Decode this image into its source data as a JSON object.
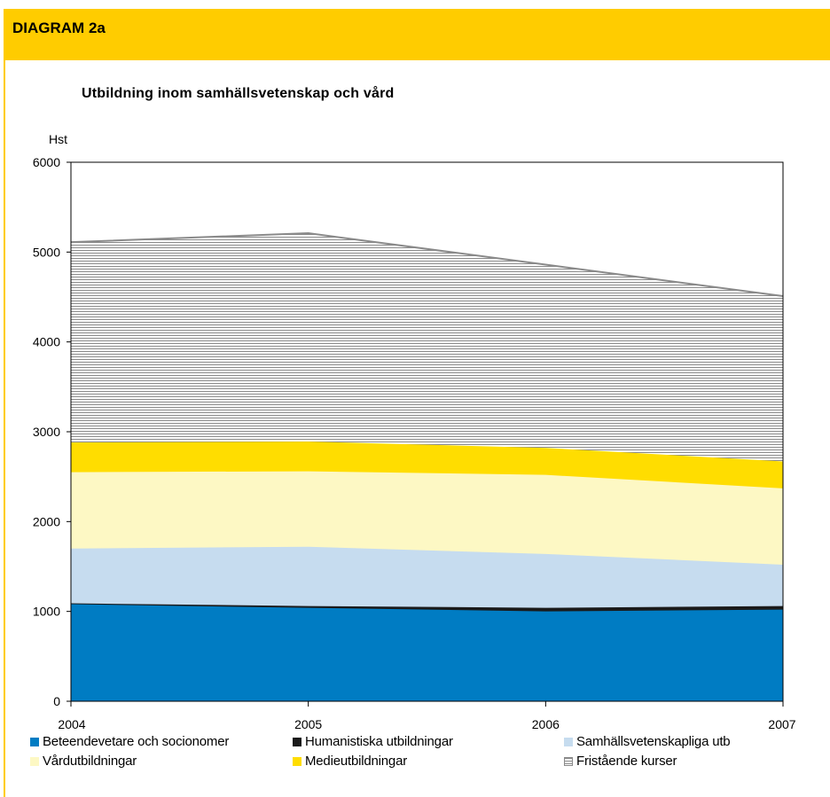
{
  "header": {
    "title": "DIAGRAM 2a"
  },
  "chart_data": {
    "type": "area",
    "stacked": true,
    "title": "Utbildning inom samhällsvetenskap och vård",
    "ylabel": "Hst",
    "xlabel": "",
    "x": [
      "2004",
      "2005",
      "2006",
      "2007"
    ],
    "ylim": [
      0,
      6000
    ],
    "yticks": [
      "0",
      "1000",
      "2000",
      "3000",
      "4000",
      "5000",
      "6000"
    ],
    "grid": false,
    "legend_position": "bottom",
    "series": [
      {
        "name": "Beteendevetare och socionomer",
        "color": "#007cc3",
        "values": [
          1080,
          1040,
          1000,
          1020
        ]
      },
      {
        "name": "Humanistiska utbildningar",
        "color": "#1a1a1a",
        "values": [
          10,
          20,
          40,
          40
        ]
      },
      {
        "name": "Samhällsvetenskapliga utb",
        "color": "#c6dcef",
        "values": [
          610,
          660,
          600,
          460
        ]
      },
      {
        "name": "Vårdutbildningar",
        "color": "#fdf8c4",
        "values": [
          850,
          840,
          880,
          850
        ]
      },
      {
        "name": "Medieutbildningar",
        "color": "#ffdd00",
        "values": [
          330,
          330,
          300,
          300
        ]
      },
      {
        "name": "Fristående kurser",
        "color": "#8a8a8a",
        "values": [
          2230,
          2320,
          2040,
          1840
        ],
        "pattern": "horizontal-hatch"
      }
    ]
  }
}
